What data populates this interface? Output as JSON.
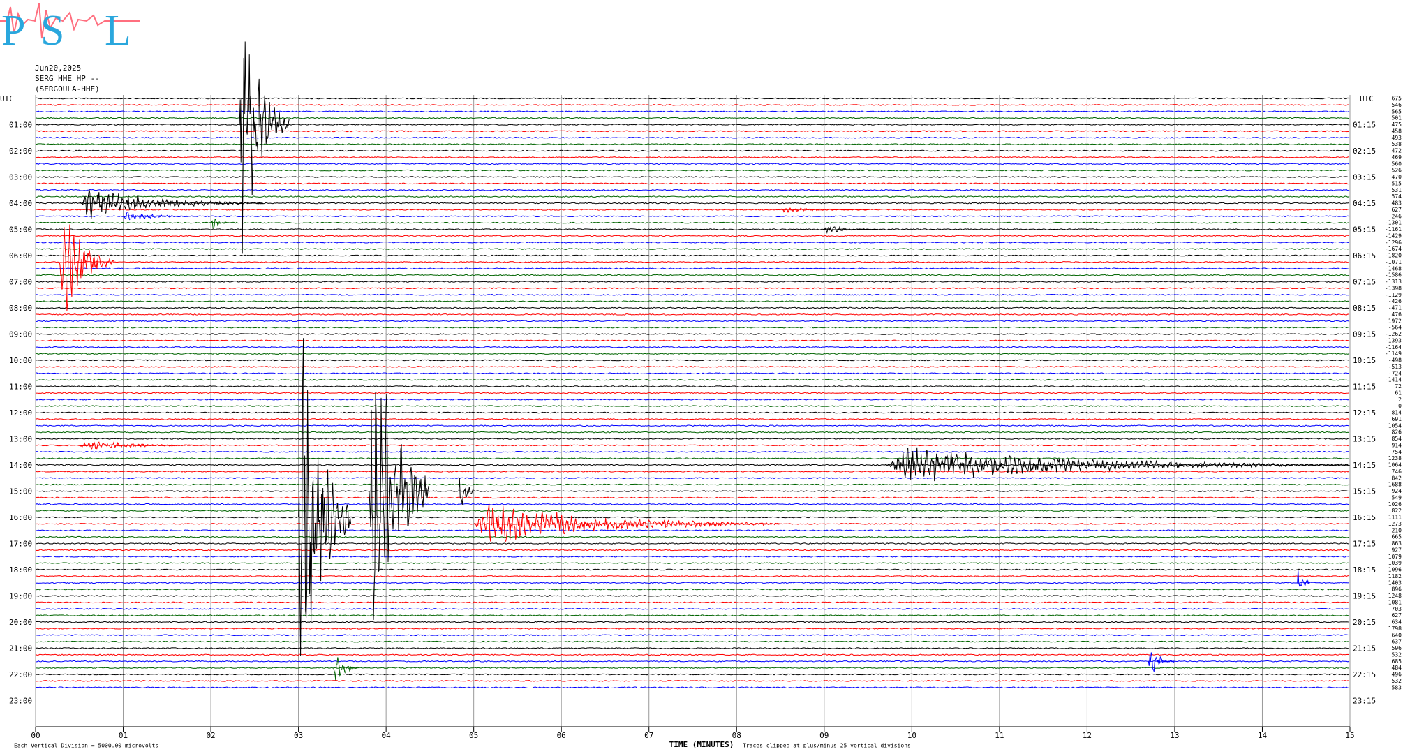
{
  "chart_data": {
    "type": "helicorder",
    "logo_letters": [
      "P",
      "S",
      "L"
    ],
    "date": "Jun20,2025",
    "station": "SERG HHE HP --",
    "station_name": "(SERGOULA-HHE)",
    "left_corner_label": "UTC",
    "right_corner_label": "UTC",
    "left_labels": [
      "01:00",
      "02:00",
      "03:00",
      "04:00",
      "05:00",
      "06:00",
      "07:00",
      "08:00",
      "09:00",
      "10:00",
      "11:00",
      "12:00",
      "13:00",
      "14:00",
      "15:00",
      "16:00",
      "17:00",
      "18:00",
      "19:00",
      "20:00",
      "21:00",
      "22:00",
      "23:00"
    ],
    "right_labels": [
      "01:15",
      "02:15",
      "03:15",
      "04:15",
      "05:15",
      "06:15",
      "07:15",
      "08:15",
      "09:15",
      "10:15",
      "11:15",
      "12:15",
      "13:15",
      "14:15",
      "15:15",
      "16:15",
      "17:15",
      "18:15",
      "19:15",
      "20:15",
      "21:15",
      "22:15",
      "23:15"
    ],
    "offsets": [
      675,
      546,
      565,
      501,
      475,
      458,
      493,
      538,
      472,
      469,
      560,
      526,
      470,
      515,
      531,
      574,
      483,
      627,
      246,
      -1301,
      -1161,
      -1429,
      -1296,
      -1674,
      -1820,
      -1071,
      -1468,
      -1586,
      -1313,
      -1398,
      -1129,
      -426,
      -471,
      476,
      1972,
      -564,
      -1262,
      -1393,
      -1164,
      -1149,
      -498,
      -513,
      -724,
      -1414,
      72,
      61,
      2,
      0,
      814,
      691,
      1054,
      826,
      854,
      914,
      754,
      1238,
      1064,
      746,
      842,
      1688,
      924,
      549,
      1026,
      822,
      1111,
      1273,
      210,
      665,
      863,
      927,
      1079,
      1039,
      1096,
      1182,
      1403,
      896,
      1248,
      1081,
      703,
      627,
      634,
      1798,
      640,
      637,
      596,
      532,
      685,
      484,
      496,
      532,
      583
    ],
    "colors": [
      "#000000",
      "#ff0000",
      "#0000ff",
      "#006400"
    ],
    "xlabel": "TIME (MINUTES)",
    "xlim": [
      0,
      15
    ],
    "xticks": [
      {
        "value": 0,
        "label": "00"
      },
      {
        "value": 1,
        "label": "01"
      },
      {
        "value": 2,
        "label": "02"
      },
      {
        "value": 3,
        "label": "03"
      },
      {
        "value": 4,
        "label": "04"
      },
      {
        "value": 5,
        "label": "05"
      },
      {
        "value": 6,
        "label": "06"
      },
      {
        "value": 7,
        "label": "07"
      },
      {
        "value": 8,
        "label": "08"
      },
      {
        "value": 9,
        "label": "09"
      },
      {
        "value": 10,
        "label": "10"
      },
      {
        "value": 11,
        "label": "11"
      },
      {
        "value": 12,
        "label": "12"
      },
      {
        "value": 13,
        "label": "13"
      },
      {
        "value": 14,
        "label": "14"
      },
      {
        "value": 15,
        "label": "15"
      }
    ],
    "scale_note": "Each Vertical Division = 5000.00 microvolts",
    "clip_note": "Traces clipped at plus/minus 25 vertical divisions",
    "events": [
      {
        "row": 4,
        "start": 2.32,
        "end": 2.9,
        "amplitude": 15
      },
      {
        "row": 16,
        "start": 0.5,
        "end": 2.6,
        "amplitude": 1.8
      },
      {
        "row": 17,
        "start": 8.5,
        "end": 9.5,
        "amplitude": 0.4
      },
      {
        "row": 18,
        "start": 1.0,
        "end": 1.8,
        "amplitude": 0.6
      },
      {
        "row": 19,
        "start": 2.0,
        "end": 2.2,
        "amplitude": 1
      },
      {
        "row": 20,
        "start": 9.0,
        "end": 9.6,
        "amplitude": 0.5
      },
      {
        "row": 25,
        "start": 0.27,
        "end": 0.9,
        "amplitude": 7
      },
      {
        "row": 53,
        "start": 0.5,
        "end": 2.0,
        "amplitude": 0.6
      },
      {
        "row": 56,
        "start": 9.7,
        "end": 15,
        "amplitude": 2.2
      },
      {
        "row": 60,
        "start": 3.8,
        "end": 4.5,
        "amplitude": 25
      },
      {
        "row": 60,
        "start": 4.83,
        "end": 5.0,
        "amplitude": 4
      },
      {
        "row": 64,
        "start": 3.0,
        "end": 3.6,
        "amplitude": 25
      },
      {
        "row": 65,
        "start": 5.0,
        "end": 8.5,
        "amplitude": 2.5
      },
      {
        "row": 74,
        "start": 14.4,
        "end": 14.55,
        "amplitude": 3
      },
      {
        "row": 86,
        "start": 12.7,
        "end": 13.0,
        "amplitude": 2
      },
      {
        "row": 87,
        "start": 3.4,
        "end": 3.7,
        "amplitude": 2
      }
    ]
  }
}
